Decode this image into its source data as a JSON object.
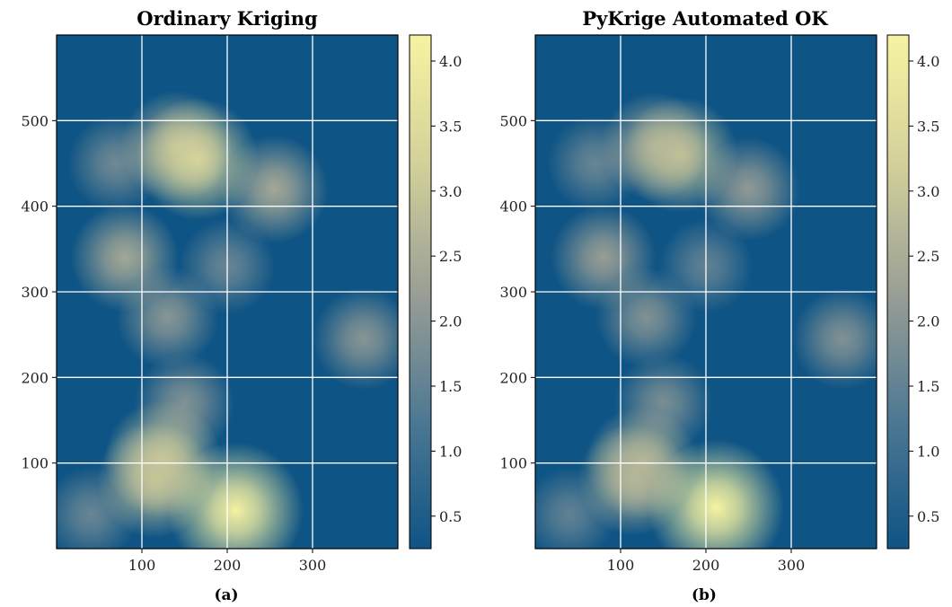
{
  "chart_data": [
    {
      "type": "heatmap",
      "title": "Ordinary Kriging",
      "xlabel": "(a)",
      "ylabel": "",
      "xlim": [
        0,
        400
      ],
      "ylim": [
        0,
        600
      ],
      "xticks": [
        100,
        200,
        300
      ],
      "yticks": [
        100,
        200,
        300,
        400,
        500
      ],
      "grid": true,
      "colorbar": {
        "min": 0.25,
        "max": 4.2,
        "ticks": [
          "0.5",
          "1.0",
          "1.5",
          "2.0",
          "2.5",
          "3.0",
          "3.5",
          "4.0"
        ]
      },
      "colormap": [
        "#0e5485",
        "#4d7893",
        "#9a9f95",
        "#d3d19a",
        "#f7f3a2"
      ],
      "hotspots": [
        {
          "x": 210,
          "y": 45,
          "value": 4.15
        },
        {
          "x": 165,
          "y": 455,
          "value": 3.3
        },
        {
          "x": 125,
          "y": 105,
          "value": 3.0
        },
        {
          "x": 115,
          "y": 80,
          "value": 2.9
        },
        {
          "x": 140,
          "y": 470,
          "value": 2.6
        },
        {
          "x": 80,
          "y": 340,
          "value": 2.4
        },
        {
          "x": 255,
          "y": 420,
          "value": 2.4
        },
        {
          "x": 130,
          "y": 270,
          "value": 2.0
        },
        {
          "x": 360,
          "y": 245,
          "value": 2.0
        },
        {
          "x": 150,
          "y": 170,
          "value": 1.9
        },
        {
          "x": 70,
          "y": 450,
          "value": 1.7
        },
        {
          "x": 200,
          "y": 330,
          "value": 1.6
        },
        {
          "x": 40,
          "y": 40,
          "value": 1.6
        }
      ]
    },
    {
      "type": "heatmap",
      "title": "PyKrige Automated OK",
      "xlabel": "(b)",
      "ylabel": "",
      "xlim": [
        0,
        400
      ],
      "ylim": [
        0,
        600
      ],
      "xticks": [
        100,
        200,
        300
      ],
      "yticks": [
        100,
        200,
        300,
        400,
        500
      ],
      "grid": true,
      "colorbar": {
        "min": 0.25,
        "max": 4.2,
        "ticks": [
          "0.5",
          "1.0",
          "1.5",
          "2.0",
          "2.5",
          "3.0",
          "3.5",
          "4.0"
        ]
      },
      "colormap": [
        "#0e5485",
        "#4d7893",
        "#9a9f95",
        "#d3d19a",
        "#f7f3a2"
      ],
      "hotspots": [
        {
          "x": 212,
          "y": 48,
          "value": 4.2
        },
        {
          "x": 170,
          "y": 460,
          "value": 2.9
        },
        {
          "x": 125,
          "y": 100,
          "value": 2.7
        },
        {
          "x": 115,
          "y": 80,
          "value": 2.6
        },
        {
          "x": 140,
          "y": 470,
          "value": 2.4
        },
        {
          "x": 80,
          "y": 340,
          "value": 2.2
        },
        {
          "x": 250,
          "y": 420,
          "value": 2.1
        },
        {
          "x": 130,
          "y": 270,
          "value": 1.9
        },
        {
          "x": 360,
          "y": 245,
          "value": 1.9
        },
        {
          "x": 150,
          "y": 170,
          "value": 1.8
        },
        {
          "x": 70,
          "y": 450,
          "value": 1.6
        },
        {
          "x": 200,
          "y": 330,
          "value": 1.5
        },
        {
          "x": 40,
          "y": 40,
          "value": 1.5
        }
      ]
    }
  ]
}
